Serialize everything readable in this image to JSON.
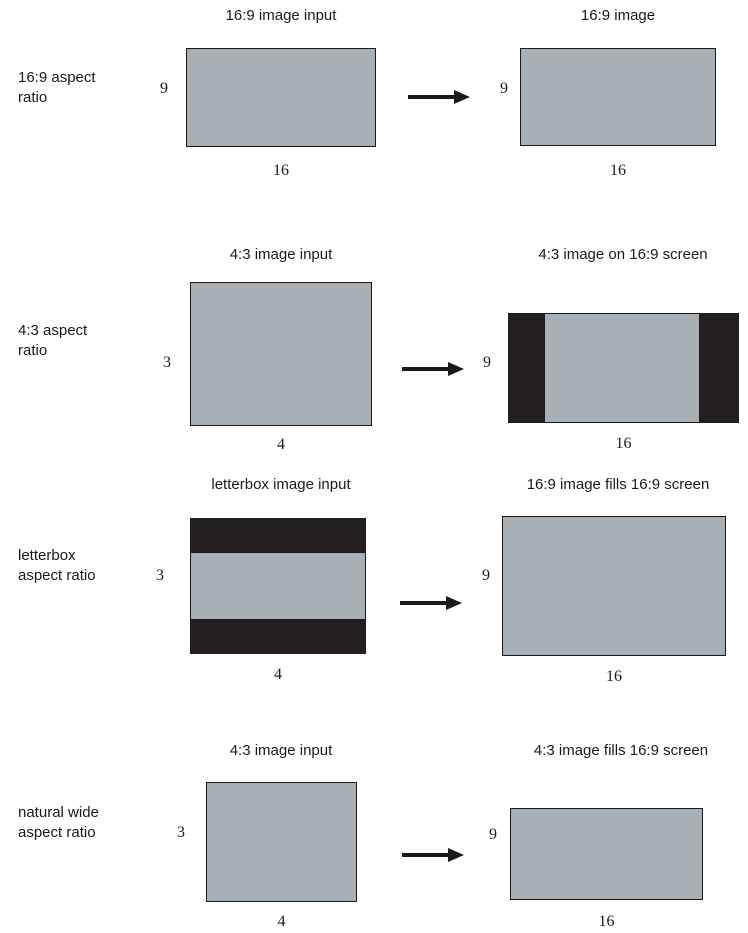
{
  "colors": {
    "image_fill": "#a8b0b5",
    "bar_fill": "#231f20",
    "outline": "#1a1a1a"
  },
  "rows": [
    {
      "label_lines": [
        "16:9 aspect",
        "ratio"
      ],
      "input_heading": "16:9 image input",
      "output_heading": "16:9 image",
      "input_height_label": "9",
      "input_width_label": "16",
      "output_height_label": "9",
      "output_width_label": "16"
    },
    {
      "label_lines": [
        "4:3 aspect",
        "ratio"
      ],
      "input_heading": "4:3 image input",
      "output_heading": "4:3 image on 16:9 screen",
      "input_height_label": "3",
      "input_width_label": "4",
      "output_height_label": "9",
      "output_width_label": "16"
    },
    {
      "label_lines": [
        "letterbox",
        "aspect ratio"
      ],
      "input_heading": "letterbox image input",
      "output_heading": "16:9 image fills 16:9 screen",
      "input_height_label": "3",
      "input_width_label": "4",
      "output_height_label": "9",
      "output_width_label": "16"
    },
    {
      "label_lines": [
        "natural wide",
        "aspect ratio"
      ],
      "input_heading": "4:3 image input",
      "output_heading": "4:3 image fills 16:9 screen",
      "input_height_label": "3",
      "input_width_label": "4",
      "output_height_label": "9",
      "output_width_label": "16"
    }
  ]
}
